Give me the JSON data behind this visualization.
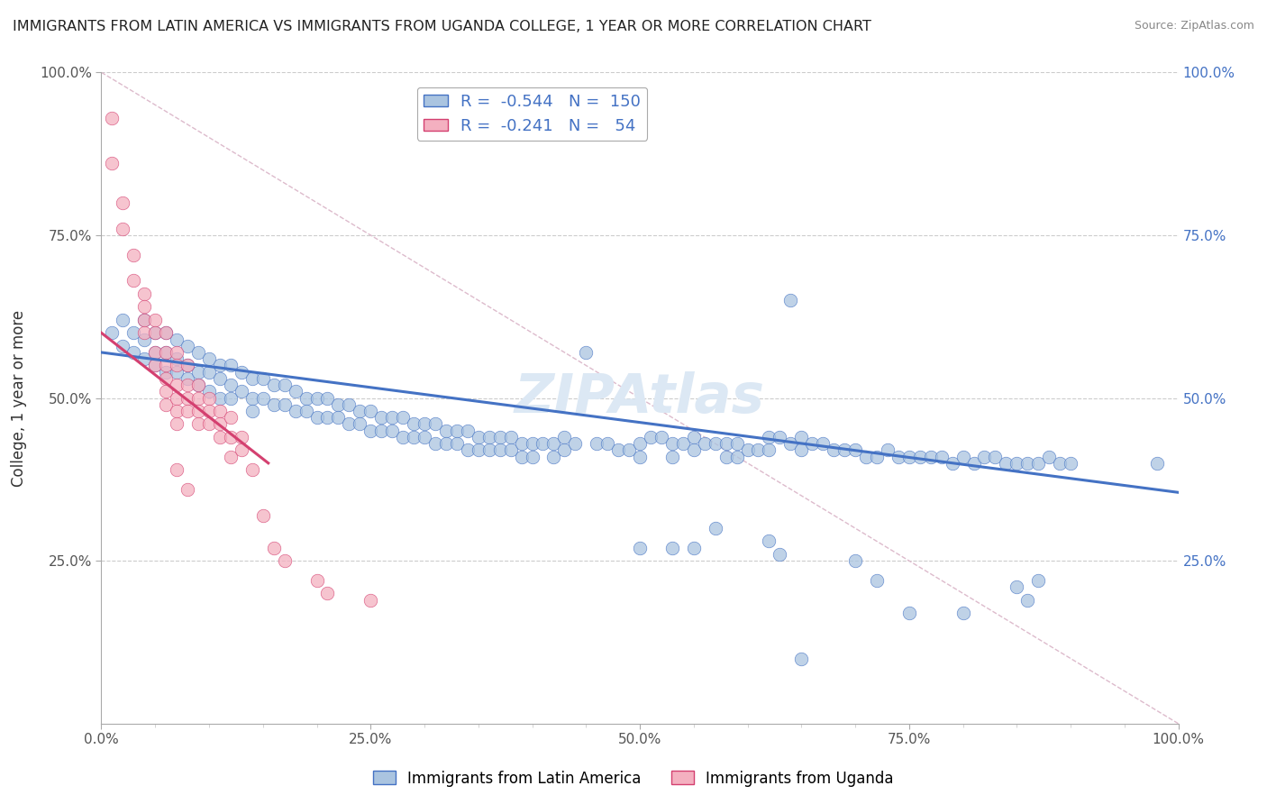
{
  "title": "IMMIGRANTS FROM LATIN AMERICA VS IMMIGRANTS FROM UGANDA COLLEGE, 1 YEAR OR MORE CORRELATION CHART",
  "source": "Source: ZipAtlas.com",
  "ylabel": "College, 1 year or more",
  "xlim": [
    0.0,
    1.0
  ],
  "ylim": [
    0.0,
    1.0
  ],
  "xtick_labels": [
    "0.0%",
    "",
    "",
    "",
    "",
    "25.0%",
    "",
    "",
    "",
    "",
    "50.0%",
    "",
    "",
    "",
    "",
    "75.0%",
    "",
    "",
    "",
    "",
    "100.0%"
  ],
  "xtick_positions": [
    0.0,
    0.05,
    0.1,
    0.15,
    0.2,
    0.25,
    0.3,
    0.35,
    0.4,
    0.45,
    0.5,
    0.55,
    0.6,
    0.65,
    0.7,
    0.75,
    0.8,
    0.85,
    0.9,
    0.95,
    1.0
  ],
  "ytick_labels": [
    "25.0%",
    "50.0%",
    "75.0%",
    "100.0%"
  ],
  "ytick_positions": [
    0.25,
    0.5,
    0.75,
    1.0
  ],
  "blue_R": -0.544,
  "blue_N": 150,
  "pink_R": -0.241,
  "pink_N": 54,
  "blue_color": "#aac4e0",
  "pink_color": "#f4b0c0",
  "blue_line_color": "#4472c4",
  "pink_line_color": "#d44070",
  "legend_blue_label": "Immigrants from Latin America",
  "legend_pink_label": "Immigrants from Uganda",
  "watermark": "ZIPAtlas",
  "blue_line_x0": 0.0,
  "blue_line_y0": 0.57,
  "blue_line_x1": 1.0,
  "blue_line_y1": 0.355,
  "pink_line_x0": 0.0,
  "pink_line_y0": 0.6,
  "pink_line_x1": 0.155,
  "pink_line_y1": 0.4,
  "blue_scatter": [
    [
      0.01,
      0.6
    ],
    [
      0.02,
      0.62
    ],
    [
      0.02,
      0.58
    ],
    [
      0.03,
      0.6
    ],
    [
      0.03,
      0.57
    ],
    [
      0.04,
      0.62
    ],
    [
      0.04,
      0.59
    ],
    [
      0.04,
      0.56
    ],
    [
      0.05,
      0.6
    ],
    [
      0.05,
      0.57
    ],
    [
      0.05,
      0.55
    ],
    [
      0.06,
      0.6
    ],
    [
      0.06,
      0.57
    ],
    [
      0.06,
      0.54
    ],
    [
      0.07,
      0.59
    ],
    [
      0.07,
      0.56
    ],
    [
      0.07,
      0.54
    ],
    [
      0.08,
      0.58
    ],
    [
      0.08,
      0.55
    ],
    [
      0.08,
      0.53
    ],
    [
      0.09,
      0.57
    ],
    [
      0.09,
      0.54
    ],
    [
      0.09,
      0.52
    ],
    [
      0.1,
      0.56
    ],
    [
      0.1,
      0.54
    ],
    [
      0.1,
      0.51
    ],
    [
      0.11,
      0.55
    ],
    [
      0.11,
      0.53
    ],
    [
      0.11,
      0.5
    ],
    [
      0.12,
      0.55
    ],
    [
      0.12,
      0.52
    ],
    [
      0.12,
      0.5
    ],
    [
      0.13,
      0.54
    ],
    [
      0.13,
      0.51
    ],
    [
      0.14,
      0.53
    ],
    [
      0.14,
      0.5
    ],
    [
      0.14,
      0.48
    ],
    [
      0.15,
      0.53
    ],
    [
      0.15,
      0.5
    ],
    [
      0.16,
      0.52
    ],
    [
      0.16,
      0.49
    ],
    [
      0.17,
      0.52
    ],
    [
      0.17,
      0.49
    ],
    [
      0.18,
      0.51
    ],
    [
      0.18,
      0.48
    ],
    [
      0.19,
      0.5
    ],
    [
      0.19,
      0.48
    ],
    [
      0.2,
      0.5
    ],
    [
      0.2,
      0.47
    ],
    [
      0.21,
      0.5
    ],
    [
      0.21,
      0.47
    ],
    [
      0.22,
      0.49
    ],
    [
      0.22,
      0.47
    ],
    [
      0.23,
      0.49
    ],
    [
      0.23,
      0.46
    ],
    [
      0.24,
      0.48
    ],
    [
      0.24,
      0.46
    ],
    [
      0.25,
      0.48
    ],
    [
      0.25,
      0.45
    ],
    [
      0.26,
      0.47
    ],
    [
      0.26,
      0.45
    ],
    [
      0.27,
      0.47
    ],
    [
      0.27,
      0.45
    ],
    [
      0.28,
      0.47
    ],
    [
      0.28,
      0.44
    ],
    [
      0.29,
      0.46
    ],
    [
      0.29,
      0.44
    ],
    [
      0.3,
      0.46
    ],
    [
      0.3,
      0.44
    ],
    [
      0.31,
      0.46
    ],
    [
      0.31,
      0.43
    ],
    [
      0.32,
      0.45
    ],
    [
      0.32,
      0.43
    ],
    [
      0.33,
      0.45
    ],
    [
      0.33,
      0.43
    ],
    [
      0.34,
      0.45
    ],
    [
      0.34,
      0.42
    ],
    [
      0.35,
      0.44
    ],
    [
      0.35,
      0.42
    ],
    [
      0.36,
      0.44
    ],
    [
      0.36,
      0.42
    ],
    [
      0.37,
      0.44
    ],
    [
      0.37,
      0.42
    ],
    [
      0.38,
      0.44
    ],
    [
      0.38,
      0.42
    ],
    [
      0.39,
      0.43
    ],
    [
      0.39,
      0.41
    ],
    [
      0.4,
      0.43
    ],
    [
      0.4,
      0.41
    ],
    [
      0.41,
      0.43
    ],
    [
      0.42,
      0.43
    ],
    [
      0.42,
      0.41
    ],
    [
      0.43,
      0.44
    ],
    [
      0.43,
      0.42
    ],
    [
      0.44,
      0.43
    ],
    [
      0.45,
      0.57
    ],
    [
      0.46,
      0.43
    ],
    [
      0.47,
      0.43
    ],
    [
      0.48,
      0.42
    ],
    [
      0.49,
      0.42
    ],
    [
      0.5,
      0.43
    ],
    [
      0.5,
      0.41
    ],
    [
      0.51,
      0.44
    ],
    [
      0.52,
      0.44
    ],
    [
      0.53,
      0.43
    ],
    [
      0.53,
      0.41
    ],
    [
      0.54,
      0.43
    ],
    [
      0.55,
      0.44
    ],
    [
      0.55,
      0.42
    ],
    [
      0.56,
      0.43
    ],
    [
      0.57,
      0.43
    ],
    [
      0.58,
      0.43
    ],
    [
      0.58,
      0.41
    ],
    [
      0.59,
      0.43
    ],
    [
      0.59,
      0.41
    ],
    [
      0.6,
      0.42
    ],
    [
      0.61,
      0.42
    ],
    [
      0.62,
      0.44
    ],
    [
      0.62,
      0.42
    ],
    [
      0.63,
      0.44
    ],
    [
      0.64,
      0.43
    ],
    [
      0.64,
      0.65
    ],
    [
      0.65,
      0.42
    ],
    [
      0.65,
      0.44
    ],
    [
      0.66,
      0.43
    ],
    [
      0.67,
      0.43
    ],
    [
      0.68,
      0.42
    ],
    [
      0.69,
      0.42
    ],
    [
      0.7,
      0.42
    ],
    [
      0.71,
      0.41
    ],
    [
      0.72,
      0.41
    ],
    [
      0.73,
      0.42
    ],
    [
      0.74,
      0.41
    ],
    [
      0.75,
      0.41
    ],
    [
      0.76,
      0.41
    ],
    [
      0.77,
      0.41
    ],
    [
      0.78,
      0.41
    ],
    [
      0.79,
      0.4
    ],
    [
      0.8,
      0.41
    ],
    [
      0.81,
      0.4
    ],
    [
      0.82,
      0.41
    ],
    [
      0.83,
      0.41
    ],
    [
      0.84,
      0.4
    ],
    [
      0.85,
      0.4
    ],
    [
      0.86,
      0.4
    ],
    [
      0.87,
      0.4
    ],
    [
      0.88,
      0.41
    ],
    [
      0.89,
      0.4
    ],
    [
      0.9,
      0.4
    ],
    [
      0.5,
      0.27
    ],
    [
      0.53,
      0.27
    ],
    [
      0.55,
      0.27
    ],
    [
      0.57,
      0.3
    ],
    [
      0.62,
      0.28
    ],
    [
      0.63,
      0.26
    ],
    [
      0.65,
      0.1
    ],
    [
      0.7,
      0.25
    ],
    [
      0.72,
      0.22
    ],
    [
      0.75,
      0.17
    ],
    [
      0.8,
      0.17
    ],
    [
      0.85,
      0.21
    ],
    [
      0.86,
      0.19
    ],
    [
      0.87,
      0.22
    ],
    [
      0.98,
      0.4
    ]
  ],
  "pink_scatter": [
    [
      0.01,
      0.93
    ],
    [
      0.01,
      0.86
    ],
    [
      0.02,
      0.8
    ],
    [
      0.02,
      0.76
    ],
    [
      0.03,
      0.72
    ],
    [
      0.03,
      0.68
    ],
    [
      0.04,
      0.66
    ],
    [
      0.04,
      0.64
    ],
    [
      0.04,
      0.62
    ],
    [
      0.04,
      0.6
    ],
    [
      0.05,
      0.62
    ],
    [
      0.05,
      0.6
    ],
    [
      0.05,
      0.57
    ],
    [
      0.05,
      0.55
    ],
    [
      0.06,
      0.6
    ],
    [
      0.06,
      0.57
    ],
    [
      0.06,
      0.55
    ],
    [
      0.06,
      0.53
    ],
    [
      0.06,
      0.51
    ],
    [
      0.06,
      0.49
    ],
    [
      0.07,
      0.57
    ],
    [
      0.07,
      0.55
    ],
    [
      0.07,
      0.52
    ],
    [
      0.07,
      0.5
    ],
    [
      0.07,
      0.48
    ],
    [
      0.07,
      0.46
    ],
    [
      0.08,
      0.55
    ],
    [
      0.08,
      0.52
    ],
    [
      0.08,
      0.5
    ],
    [
      0.08,
      0.48
    ],
    [
      0.09,
      0.52
    ],
    [
      0.09,
      0.5
    ],
    [
      0.09,
      0.48
    ],
    [
      0.09,
      0.46
    ],
    [
      0.1,
      0.5
    ],
    [
      0.1,
      0.48
    ],
    [
      0.1,
      0.46
    ],
    [
      0.11,
      0.48
    ],
    [
      0.11,
      0.46
    ],
    [
      0.11,
      0.44
    ],
    [
      0.12,
      0.47
    ],
    [
      0.12,
      0.44
    ],
    [
      0.12,
      0.41
    ],
    [
      0.13,
      0.44
    ],
    [
      0.13,
      0.42
    ],
    [
      0.14,
      0.39
    ],
    [
      0.15,
      0.32
    ],
    [
      0.07,
      0.39
    ],
    [
      0.08,
      0.36
    ],
    [
      0.16,
      0.27
    ],
    [
      0.17,
      0.25
    ],
    [
      0.2,
      0.22
    ],
    [
      0.21,
      0.2
    ],
    [
      0.25,
      0.19
    ]
  ]
}
